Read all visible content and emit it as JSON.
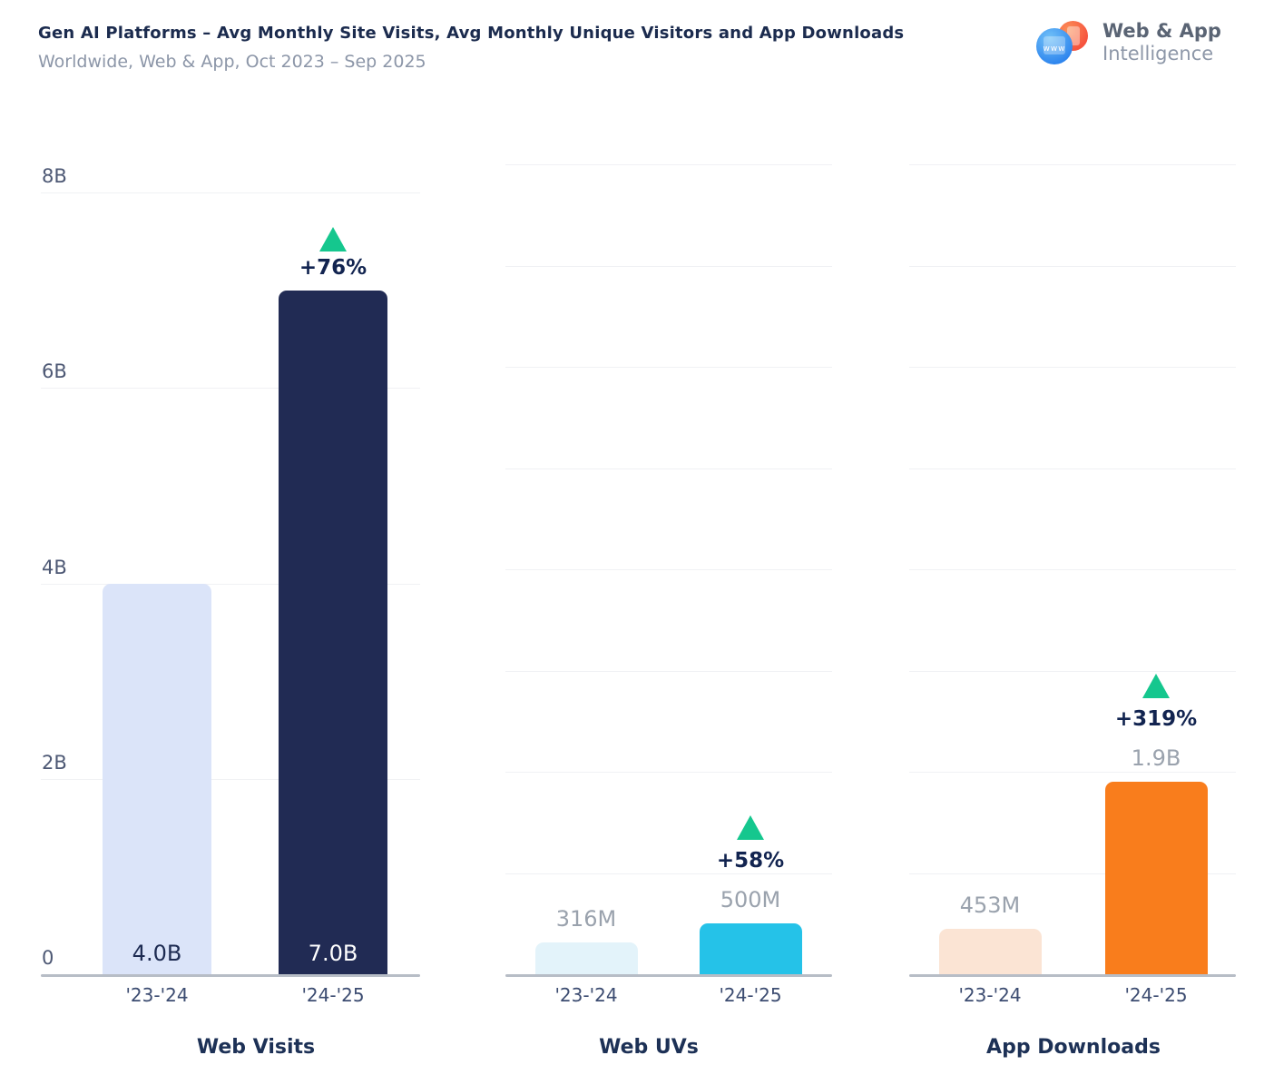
{
  "header": {
    "title": "Gen AI Platforms – Avg Monthly Site Visits, Avg Monthly Unique Visitors and App Downloads",
    "subtitle": "Worldwide, Web & App, Oct 2023 – Sep 2025"
  },
  "logo": {
    "line1": "Web & App",
    "line2": "Intelligence",
    "www": "www"
  },
  "colors": {
    "title_navy": "#1b2b4e",
    "subtitle_gray": "#8c96a8",
    "gridline": "#f0f1f4",
    "axis_line": "#b7bdc6",
    "tick_label": "#4d5874",
    "category_label": "#3c4c71",
    "panel_title": "#1d3156",
    "value_label_gray": "#9aa2ad",
    "percent_label": "#122450",
    "growth_green": "#15c78e"
  },
  "chart_data": [
    {
      "type": "bar",
      "title": "Web Visits",
      "categories": [
        "'23-'24",
        "'24-'25"
      ],
      "values_billions": [
        4.0,
        7.0
      ],
      "value_labels": [
        "4.0B",
        "7.0B"
      ],
      "change_label": "+76%",
      "ylim_billions": [
        0,
        8
      ],
      "yticks": [
        {
          "label": "0",
          "value": 0
        },
        {
          "label": "2B",
          "value": 2
        },
        {
          "label": "4B",
          "value": 4
        },
        {
          "label": "6B",
          "value": 6
        },
        {
          "label": "8B",
          "value": 8
        }
      ],
      "bar_colors": [
        "#dbe4f9",
        "#212b54"
      ],
      "value_label_colors": [
        "#1d2b52",
        "#ffffff"
      ],
      "value_label_placement": "inside",
      "grid": "on"
    },
    {
      "type": "bar",
      "title": "Web UVs",
      "categories": [
        "'23-'24",
        "'24-'25"
      ],
      "values_billions": [
        0.316,
        0.5
      ],
      "value_labels": [
        "316M",
        "500M"
      ],
      "change_label": "+58%",
      "ylim_billions": [
        0,
        8
      ],
      "yticks": [],
      "bar_colors": [
        "#e3f3fa",
        "#25c2e8"
      ],
      "value_label_colors": [
        "#9aa2ad",
        "#9aa2ad"
      ],
      "value_label_placement": "above",
      "grid": "on"
    },
    {
      "type": "bar",
      "title": "App Downloads",
      "categories": [
        "'23-'24",
        "'24-'25"
      ],
      "values_billions": [
        0.453,
        1.9
      ],
      "value_labels": [
        "453M",
        "1.9B"
      ],
      "change_label": "+319%",
      "ylim_billions": [
        0,
        8
      ],
      "yticks": [],
      "bar_colors": [
        "#fbe4d4",
        "#f97d1c"
      ],
      "value_label_colors": [
        "#9aa2ad",
        "#9aa2ad"
      ],
      "value_label_placement": "above",
      "grid": "on"
    }
  ]
}
